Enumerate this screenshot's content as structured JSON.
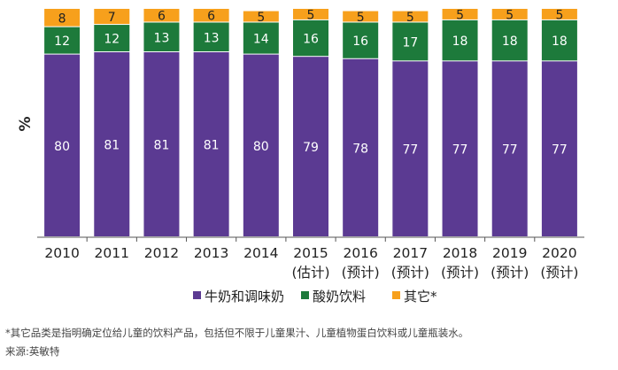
{
  "chart_data": {
    "type": "bar",
    "stacked": true,
    "percent": true,
    "ylabel": "%",
    "ylim": [
      0,
      100
    ],
    "categories": [
      [
        "2010"
      ],
      [
        "2011"
      ],
      [
        "2012"
      ],
      [
        "2013"
      ],
      [
        "2014"
      ],
      [
        "2015",
        "(估计)"
      ],
      [
        "2016",
        "(预计)"
      ],
      [
        "2017",
        "(预计)"
      ],
      [
        "2018",
        "(预计)"
      ],
      [
        "2019",
        "(预计)"
      ],
      [
        "2020",
        "(预计)"
      ]
    ],
    "series": [
      {
        "name": "牛奶和调味奶",
        "color": "#5B3A92",
        "label_color": "#ffffff",
        "values": [
          80,
          81,
          81,
          81,
          80,
          79,
          78,
          77,
          77,
          77,
          77
        ]
      },
      {
        "name": "酸奶饮料",
        "color": "#1D7A3B",
        "label_color": "#ffffff",
        "values": [
          12,
          12,
          13,
          13,
          14,
          16,
          16,
          17,
          18,
          18,
          18
        ]
      },
      {
        "name": "其它*",
        "color": "#F7A01C",
        "label_color": "#222222",
        "values": [
          8,
          7,
          6,
          6,
          5,
          5,
          5,
          5,
          5,
          5,
          5
        ]
      }
    ],
    "legend_position": "bottom"
  },
  "footnotes": {
    "note": "*其它品类是指明确定位给儿童的饮料产品，包括但不限于儿童果汁、儿童植物蛋白饮料或儿童瓶装水。",
    "source": "来源:英敏特"
  }
}
